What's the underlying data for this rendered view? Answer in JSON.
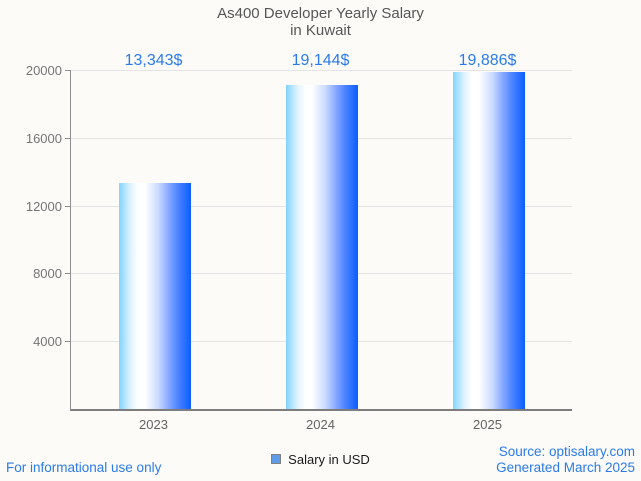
{
  "title": {
    "line1": "As400 Developer Yearly Salary",
    "line2": "in Kuwait"
  },
  "chart_data": {
    "type": "bar",
    "title": "As400 Developer Yearly Salary in Kuwait",
    "categories": [
      "2023",
      "2024",
      "2025"
    ],
    "values": [
      13343,
      19144,
      19886
    ],
    "value_labels": [
      "13,343$",
      "19,144$",
      "19,886$"
    ],
    "series_name": "Salary in USD",
    "xlabel": "",
    "ylabel": "",
    "ylim": [
      0,
      20000
    ],
    "yticks": [
      4000,
      8000,
      12000,
      16000,
      20000
    ],
    "grid": true,
    "legend_position": "bottom"
  },
  "legend": {
    "label": "Salary in USD"
  },
  "footer": {
    "left": "For informational use only",
    "source": "Source: optisalary.com",
    "generated": "Generated March 2025"
  },
  "colors": {
    "accent_blue_text": "#2a7be8",
    "bar_gradient_left": "#82d3ff",
    "bar_gradient_mid": "#ffffff",
    "bar_gradient_right": "#0b5eff",
    "legend_square_fill": "#5f9de8",
    "legend_square_border": "#808080",
    "grid_line": "#e4e4e4",
    "axis_line": "#7d7d7d",
    "title_text": "#565656",
    "y_tick_text": "#757575",
    "x_tick_text": "#636363",
    "background": "#fcfbf8"
  }
}
